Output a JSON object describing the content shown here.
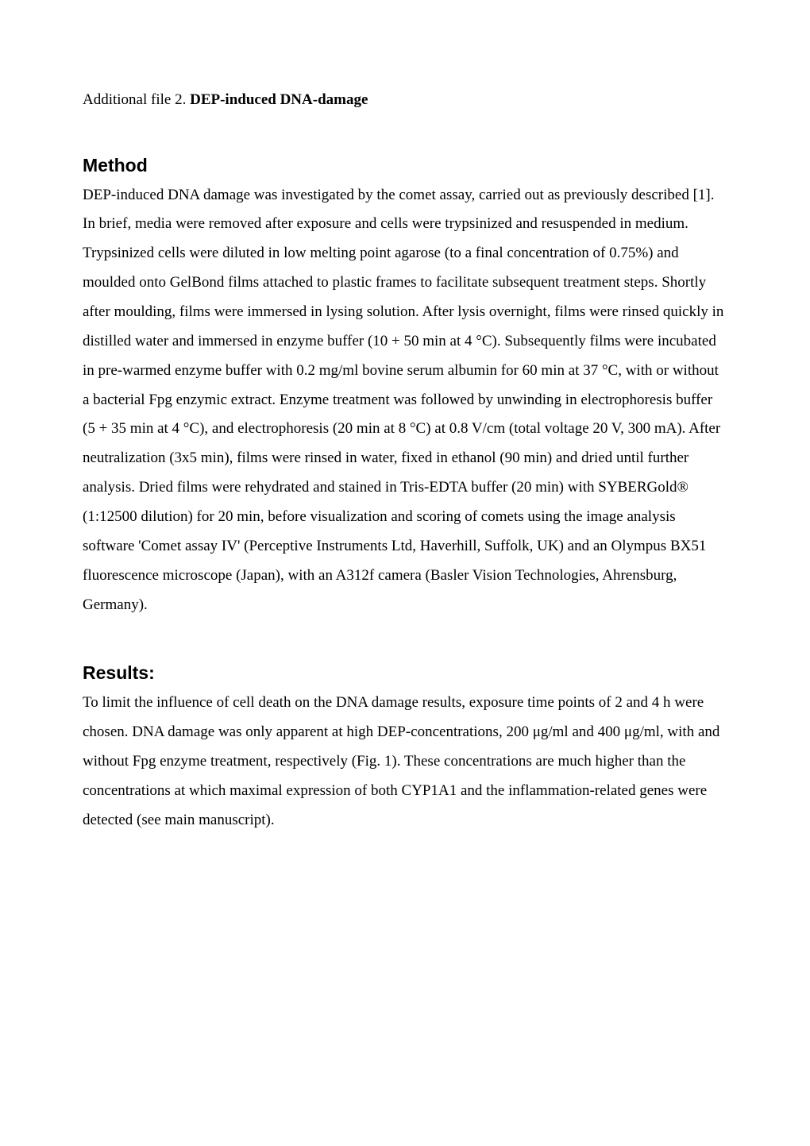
{
  "title": {
    "label": "Additional file 2. ",
    "bold": "DEP-induced DNA-damage"
  },
  "sections": {
    "method": {
      "heading": "Method",
      "paragraph": "DEP-induced DNA damage was investigated by the comet assay, carried out as previously described [1]. In brief, media were removed after exposure and cells were trypsinized and resuspended in medium. Trypsinized cells were diluted in low melting point agarose (to a final concentration of 0.75%) and moulded onto GelBond films attached to plastic frames to facilitate subsequent treatment steps. Shortly after moulding, films were immersed in lysing solution. After lysis overnight, films were rinsed quickly in distilled water and immersed in enzyme buffer (10 + 50 min at 4 °C). Subsequently films were incubated in pre-warmed enzyme buffer with 0.2 mg/ml bovine serum albumin for 60 min at 37 °C, with or without a bacterial Fpg enzymic extract. Enzyme treatment was followed by unwinding in electrophoresis buffer (5 + 35 min at 4 °C), and electrophoresis (20 min at 8 °C) at 0.8 V/cm (total voltage 20 V, 300 mA). After neutralization (3x5 min), films were rinsed in water, fixed in ethanol (90 min) and dried until further analysis. Dried films were rehydrated and stained in Tris-EDTA buffer (20 min) with SYBERGold® (1:12500 dilution) for 20 min, before visualization and scoring of comets using the image analysis software 'Comet assay IV' (Perceptive Instruments Ltd, Haverhill, Suffolk, UK) and an Olympus BX51 fluorescence microscope (Japan), with an A312f camera (Basler Vision Technologies, Ahrensburg, Germany)."
    },
    "results": {
      "heading": "Results:",
      "paragraph": "To limit the influence of cell death on the DNA damage results, exposure time points of 2 and 4 h were chosen. DNA damage was only apparent at high DEP-concentrations, 200 μg/ml and 400 μg/ml, with and without Fpg enzyme treatment, respectively (Fig. 1). These concentrations are much higher than the concentrations at which maximal expression of both CYP1A1 and the inflammation-related genes were detected (see main manuscript)."
    }
  }
}
